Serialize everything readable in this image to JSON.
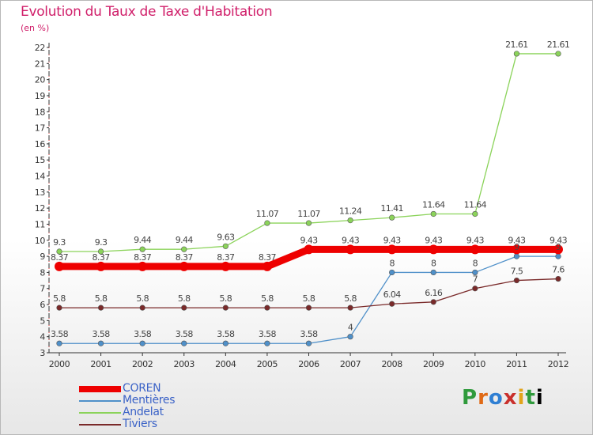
{
  "header": {
    "title": "Evolution du Taux de Taxe d'Habitation",
    "subtitle": "(en %)"
  },
  "logo_text": "Proxiti",
  "chart_data": {
    "type": "line",
    "title": "Evolution du Taux de Taxe d'Habitation",
    "ylabel": "(en %)",
    "xlabel": "",
    "ylim": [
      3,
      22
    ],
    "y_ticks": [
      3,
      4,
      5,
      6,
      7,
      8,
      9,
      10,
      11,
      12,
      13,
      14,
      15,
      16,
      17,
      18,
      19,
      20,
      21,
      22
    ],
    "categories": [
      "2000",
      "2001",
      "2002",
      "2003",
      "2004",
      "2005",
      "2006",
      "2007",
      "2008",
      "2009",
      "2010",
      "2011",
      "2012"
    ],
    "grid": false,
    "legend_position": "bottom-left",
    "series": [
      {
        "name": "COREN",
        "color": "#ee0000",
        "values": [
          8.37,
          8.37,
          8.37,
          8.37,
          8.37,
          8.37,
          9.43,
          9.43,
          9.43,
          9.43,
          9.43,
          9.43,
          9.43
        ],
        "labels": [
          "8.37",
          "8.37",
          "8.37",
          "8.37",
          "8.37",
          "8.37",
          "9.43",
          "9.43",
          "9.43",
          "9.43",
          "9.43",
          "9.43",
          "9.43"
        ]
      },
      {
        "name": "Mentières",
        "color": "#4f90c9",
        "values": [
          3.58,
          3.58,
          3.58,
          3.58,
          3.58,
          3.58,
          3.58,
          4,
          8,
          8,
          8,
          9,
          9
        ],
        "labels": [
          "3.58",
          "3.58",
          "3.58",
          "3.58",
          "3.58",
          "3.58",
          "3.58",
          "4",
          "8",
          "8",
          "8",
          "9",
          "9"
        ]
      },
      {
        "name": "Andelat",
        "color": "#8bd35a",
        "values": [
          9.3,
          9.3,
          9.44,
          9.44,
          9.63,
          11.07,
          11.07,
          11.24,
          11.41,
          11.64,
          11.64,
          21.61,
          21.61
        ],
        "labels": [
          "9.3",
          "9.3",
          "9.44",
          "9.44",
          "9.63",
          "11.07",
          "11.07",
          "11.24",
          "11.41",
          "11.64",
          "11.64",
          "21.61",
          "21.61"
        ]
      },
      {
        "name": "Tiviers",
        "color": "#7a2a2a",
        "values": [
          5.8,
          5.8,
          5.8,
          5.8,
          5.8,
          5.8,
          5.8,
          5.8,
          6.04,
          6.16,
          7,
          7.5,
          7.6
        ],
        "labels": [
          "5.8",
          "5.8",
          "5.8",
          "5.8",
          "5.8",
          "5.8",
          "5.8",
          "5.8",
          "6.04",
          "6.16",
          "7",
          "7.5",
          "7.6"
        ]
      }
    ]
  }
}
